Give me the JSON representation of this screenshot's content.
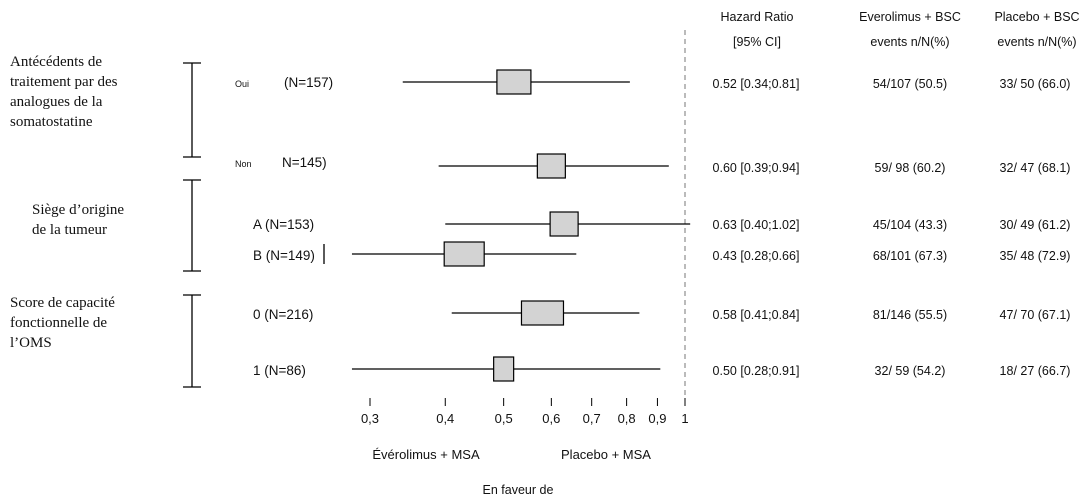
{
  "header": {
    "hr_label": "Hazard Ratio",
    "hr_sub": "[95% CI]",
    "evero_label": "Everolimus + BSC",
    "evero_sub": "events n/N(%)",
    "placebo_label": "Placebo + BSC",
    "placebo_sub": "events n/N(%)"
  },
  "groups": [
    {
      "label_lines": [
        "Antécédents de",
        "traitement par des",
        "analogues de la",
        "somatostatine"
      ]
    },
    {
      "label_lines": [
        "Siège d’origine",
        "de la tumeur"
      ]
    },
    {
      "label_lines": [
        "Score de capacité",
        "fonctionnelle de",
        "l’OMS"
      ]
    }
  ],
  "footer": {
    "favors_left": "Évérolimus + MSA",
    "favors_right": "Placebo + MSA",
    "favors_caption": "En faveur de"
  },
  "chart_data": {
    "type": "forest",
    "x_scale": "log",
    "reference_line": 1,
    "tick_labels": [
      "0,3",
      "0,4",
      "0,5",
      "0,6",
      "0,7",
      "0,8",
      "0,9",
      "1"
    ],
    "tick_values": [
      0.3,
      0.4,
      0.5,
      0.6,
      0.7,
      0.8,
      0.9,
      1.0
    ],
    "rows": [
      {
        "prefix": "Oui",
        "label": "(N=157)",
        "hr": 0.52,
        "lo": 0.34,
        "hi": 0.81,
        "hr_text": "0.52 [0.34;0.81]",
        "evero": "54/107 (50.5)",
        "placebo": "33/ 50 (66.0)"
      },
      {
        "prefix": "Non",
        "label": "N=145)",
        "hr": 0.6,
        "lo": 0.39,
        "hi": 0.94,
        "hr_text": "0.60 [0.39;0.94]",
        "evero": "59/ 98 (60.2)",
        "placebo": "32/ 47 (68.1)"
      },
      {
        "prefix": "",
        "label": "A (N=153)",
        "hr": 0.63,
        "lo": 0.4,
        "hi": 1.02,
        "hr_text": "0.63 [0.40;1.02]",
        "evero": "45/104 (43.3)",
        "placebo": "30/ 49 (61.2)"
      },
      {
        "prefix": "",
        "label": "B (N=149)",
        "hr": 0.43,
        "lo": 0.28,
        "hi": 0.66,
        "hr_text": "0.43 [0.28;0.66]",
        "evero": "68/101 (67.3)",
        "placebo": "35/ 48 (72.9)"
      },
      {
        "prefix": "",
        "label": "0 (N=216)",
        "hr": 0.58,
        "lo": 0.41,
        "hi": 0.84,
        "hr_text": "0.58 [0.41;0.84]",
        "evero": "81/146 (55.5)",
        "placebo": "47/ 70 (67.1)"
      },
      {
        "prefix": "",
        "label": "1 (N=86)",
        "hr": 0.5,
        "lo": 0.28,
        "hi": 0.91,
        "hr_text": "0.50 [0.28;0.91]",
        "evero": "32/ 59 (54.2)",
        "placebo": "18/ 27 (66.7)"
      }
    ]
  }
}
